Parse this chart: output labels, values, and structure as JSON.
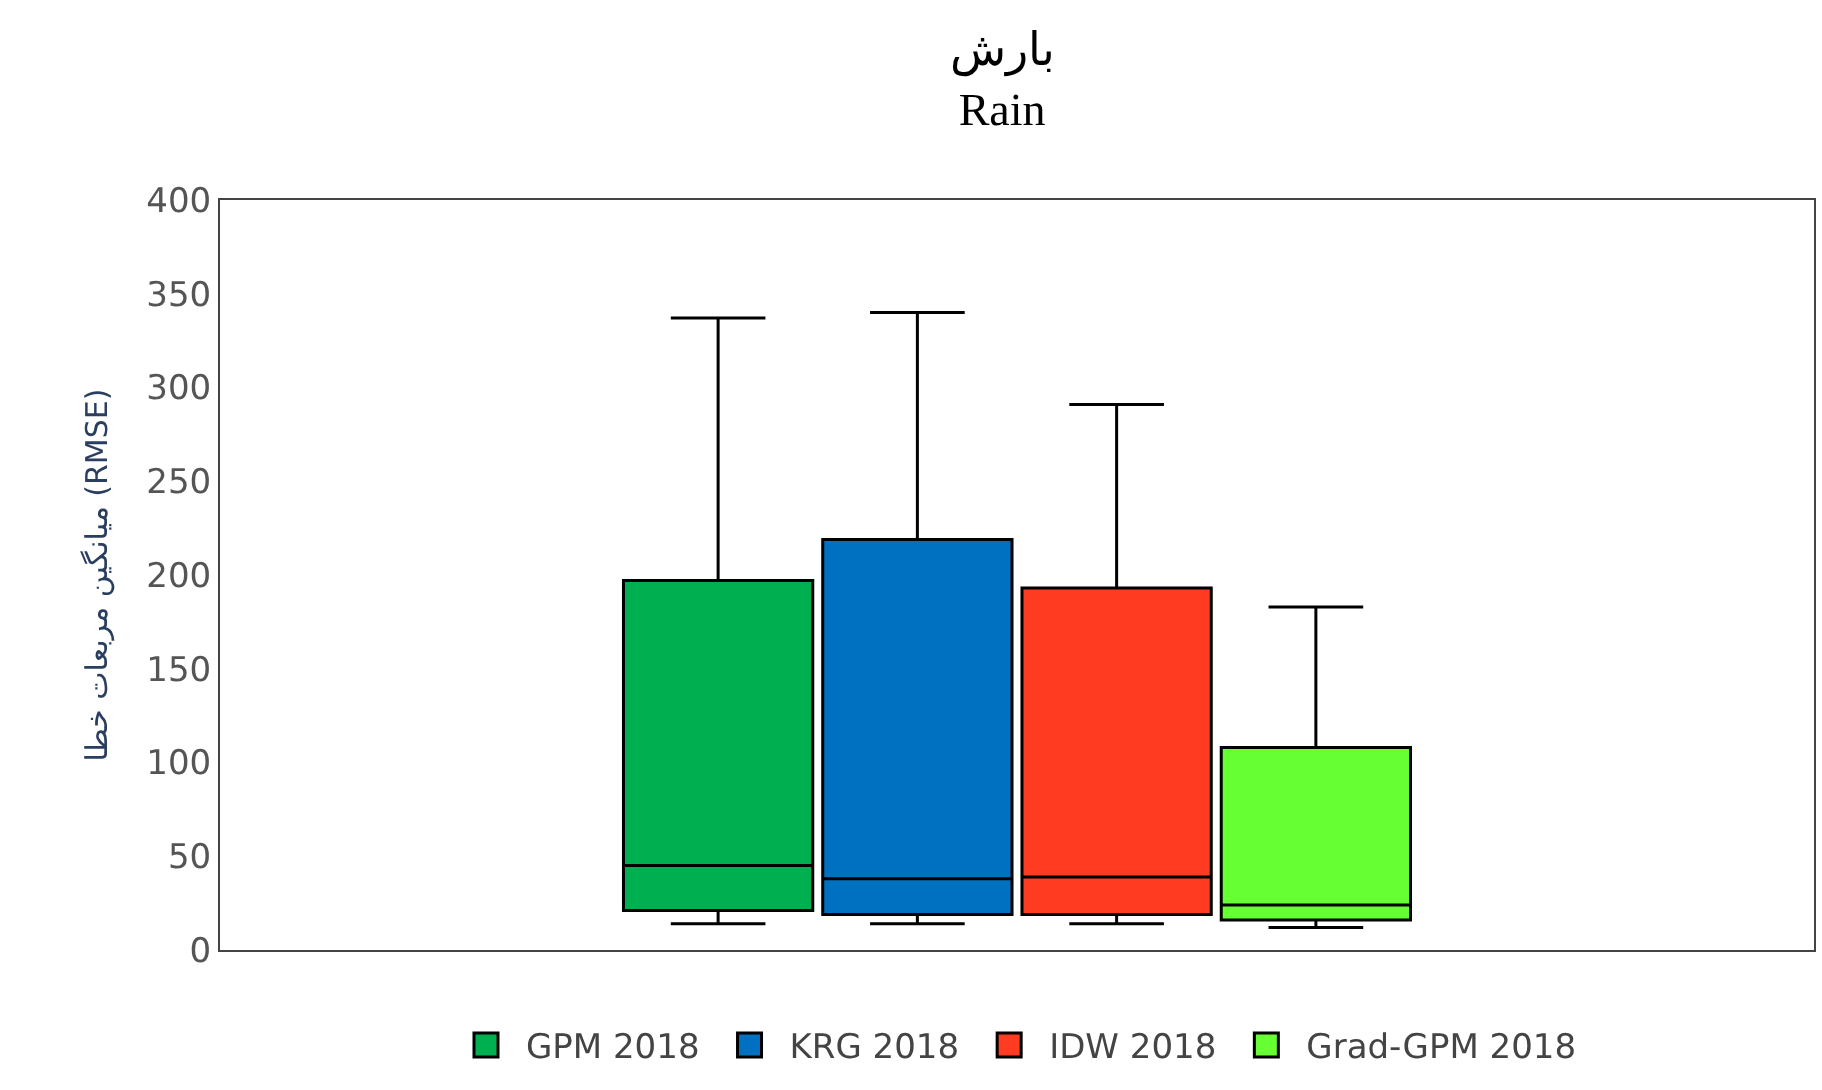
{
  "chart_data": {
    "type": "box",
    "title": "بارش",
    "subtitle": "Rain",
    "ylabel": "میانگین مربعات خطا (RMSE)",
    "categories": [
      null
    ],
    "series": [
      {
        "name": "GPM 2018",
        "color": "#00b050",
        "boxes": [
          {
            "low": 14,
            "q1": 21,
            "median": 45,
            "q3": 197,
            "high": 337
          }
        ]
      },
      {
        "name": "KRG 2018",
        "color": "#0070c0",
        "boxes": [
          {
            "low": 14,
            "q1": 19,
            "median": 38,
            "q3": 219,
            "high": 340
          }
        ]
      },
      {
        "name": "IDW 2018",
        "color": "#ff3b21",
        "boxes": [
          {
            "low": 14,
            "q1": 19,
            "median": 39,
            "q3": 193,
            "high": 291
          }
        ]
      },
      {
        "name": "Grad-GPM 2018",
        "color": "#66ff33",
        "boxes": [
          {
            "low": 12,
            "q1": 16,
            "median": 24,
            "q3": 108,
            "high": 183
          }
        ]
      }
    ],
    "ylim": [
      0,
      400
    ],
    "yticks": [
      0,
      50,
      100,
      150,
      200,
      250,
      300,
      350,
      400
    ],
    "legend": "bottom"
  }
}
